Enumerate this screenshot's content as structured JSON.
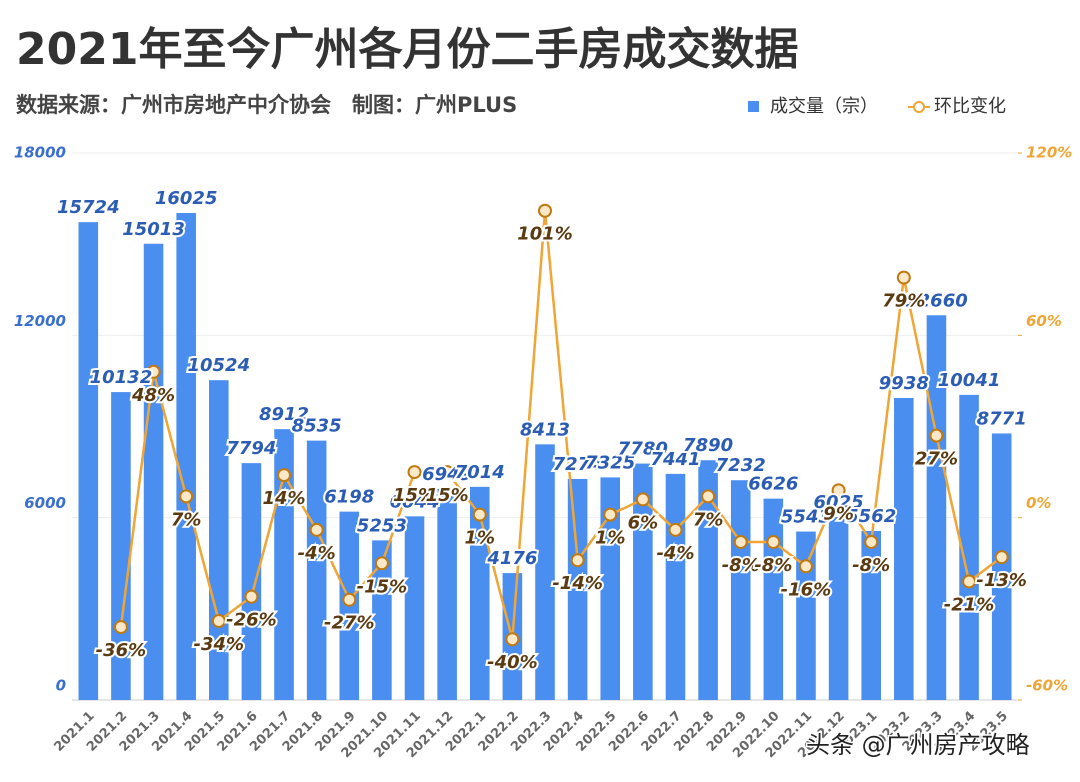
{
  "chart_data": {
    "type": "bar-line",
    "title": "2021年至今广州各月份二手房成交数据",
    "subtitle": "数据来源：广州市房地产中介协会　制图：广州PLUS",
    "watermark": "头条 @广州房产攻略",
    "categories": [
      "2021.1",
      "2021.2",
      "2021.3",
      "2021.4",
      "2021.5",
      "2021.6",
      "2021.7",
      "2021.8",
      "2021.9",
      "2021.10",
      "2021.11",
      "2021.12",
      "2022.1",
      "2022.2",
      "2022.3",
      "2022.4",
      "2022.5",
      "2022.6",
      "2022.7",
      "2022.8",
      "2022.9",
      "2022.10",
      "2022.11",
      "2022.12",
      "2023.1",
      "2023.2",
      "2023.3",
      "2023.4",
      "2023.5"
    ],
    "series": [
      {
        "name": "成交量（宗）",
        "type": "bar",
        "color": "#4a8ef0",
        "values": [
          15724,
          10132,
          15013,
          16025,
          10524,
          7794,
          8912,
          8535,
          6198,
          5253,
          6044,
          6949,
          7014,
          4176,
          8413,
          7274,
          7325,
          7780,
          7441,
          7890,
          7232,
          6626,
          5543,
          6025,
          5562,
          9938,
          12660,
          10041,
          8771
        ]
      },
      {
        "name": "环比变化",
        "type": "line",
        "axis": "y2",
        "color": "#f0a535",
        "values": [
          null,
          -36,
          48,
          7,
          -34,
          -26,
          14,
          -4,
          -27,
          -15,
          15,
          15,
          1,
          -40,
          101,
          -14,
          1,
          6,
          -4,
          7,
          -8,
          -8,
          -16,
          9,
          -8,
          79,
          27,
          -21,
          -13
        ],
        "value_labels": [
          null,
          "-36%",
          "48%",
          "7%",
          "-34%",
          "-26%",
          "14%",
          "-4%",
          "-27%",
          "-15%",
          "15%",
          "15%",
          "1%",
          "-40%",
          "101%",
          "-14%",
          "1%",
          "6%",
          "-4%",
          "7%",
          "-8%",
          "-8%",
          "-16%",
          "9%",
          "-8%",
          "79%",
          "27%",
          "-21%",
          "-13%"
        ]
      }
    ],
    "ylim": [
      0,
      18000
    ],
    "yticks": [
      0,
      6000,
      12000,
      18000
    ],
    "y2lim": [
      -60,
      120
    ],
    "y2ticks": [
      {
        "value": -60,
        "label": "-60%"
      },
      {
        "value": 0,
        "label": "0%"
      },
      {
        "value": 60,
        "label": "60%"
      },
      {
        "value": 120,
        "label": "120%"
      }
    ],
    "grid": true,
    "legend": "top-right"
  }
}
